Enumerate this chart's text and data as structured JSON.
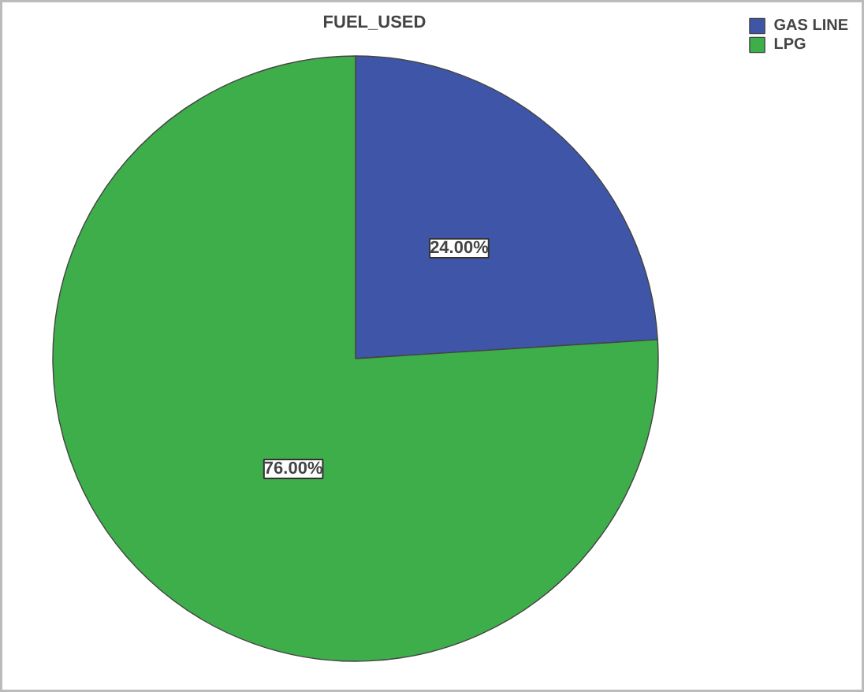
{
  "chart_data": {
    "type": "pie",
    "title": "FUEL_USED",
    "categories": [
      "GAS LINE",
      "LPG"
    ],
    "values": [
      24,
      76
    ],
    "colors": [
      "#3f56a8",
      "#3dae4a"
    ],
    "value_labels": [
      "24.00%",
      "76.00%"
    ],
    "legend": "top right"
  }
}
